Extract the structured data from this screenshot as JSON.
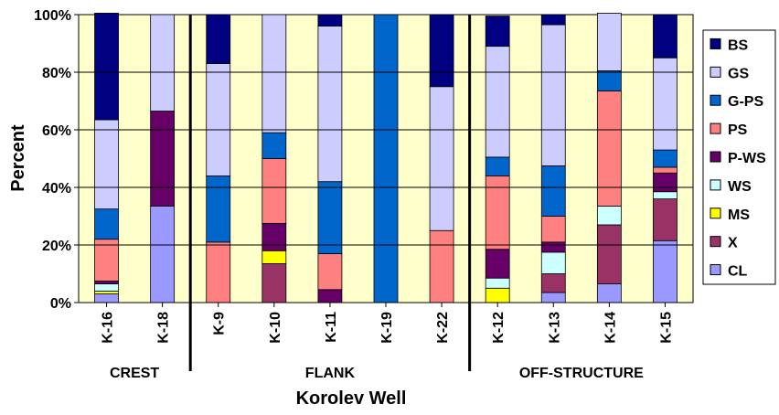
{
  "chart_data": {
    "type": "bar",
    "stacked": "percent",
    "xlabel": "Korolev Well",
    "ylabel": "Percent",
    "ylim": [
      0,
      100
    ],
    "yticks": [
      "0%",
      "20%",
      "40%",
      "60%",
      "80%",
      "100%"
    ],
    "categories": [
      "K-16",
      "K-18",
      "K-9",
      "K-10",
      "K-11",
      "K-19",
      "K-22",
      "K-12",
      "K-13",
      "K-14",
      "K-15"
    ],
    "groups": [
      {
        "label": "CREST",
        "categories": [
          "K-16",
          "K-18"
        ]
      },
      {
        "label": "FLANK",
        "categories": [
          "K-9",
          "K-10",
          "K-11",
          "K-19",
          "K-22"
        ]
      },
      {
        "label": "OFF-STRUCTURE",
        "categories": [
          "K-12",
          "K-13",
          "K-14",
          "K-15"
        ]
      }
    ],
    "legend_position": "right",
    "series": [
      {
        "name": "CL",
        "color": "#9999ff",
        "values": [
          3,
          33.5,
          0,
          0,
          0,
          0,
          0,
          0,
          3.5,
          6.5,
          21.5
        ]
      },
      {
        "name": "X",
        "color": "#993366",
        "values": [
          0,
          0,
          0,
          13.5,
          0,
          0,
          0,
          0,
          6.5,
          20.5,
          14.5
        ]
      },
      {
        "name": "MS",
        "color": "#ffff00",
        "values": [
          1,
          0,
          0,
          4.5,
          0,
          0,
          0,
          5,
          0,
          0,
          0
        ]
      },
      {
        "name": "WS",
        "color": "#ccffff",
        "values": [
          2.5,
          0,
          0,
          0,
          0,
          0,
          0,
          3.5,
          7.5,
          6.5,
          2.5
        ]
      },
      {
        "name": "P-WS",
        "color": "#660066",
        "values": [
          1,
          33,
          0,
          9.5,
          4.5,
          0,
          0,
          10,
          3.5,
          0,
          6.5
        ]
      },
      {
        "name": "PS",
        "color": "#ff8080",
        "values": [
          14.5,
          0,
          21,
          22.5,
          12.5,
          0,
          25,
          25.5,
          9,
          40,
          2
        ]
      },
      {
        "name": "G-PS",
        "color": "#0066cc",
        "values": [
          10.5,
          0,
          23,
          9,
          25,
          100,
          0,
          6.5,
          17.5,
          7,
          6
        ]
      },
      {
        "name": "GS",
        "color": "#ccccff",
        "values": [
          31,
          33.5,
          39,
          41,
          54,
          0,
          50,
          38.5,
          49,
          20,
          32
        ]
      },
      {
        "name": "BS",
        "color": "#000080",
        "values": [
          37,
          0,
          17,
          0,
          4,
          0,
          25,
          10.5,
          3.5,
          0,
          15
        ]
      }
    ],
    "legend_order": [
      "BS",
      "GS",
      "G-PS",
      "PS",
      "P-WS",
      "WS",
      "MS",
      "X",
      "CL"
    ],
    "plot_background": "#ffffcc"
  }
}
